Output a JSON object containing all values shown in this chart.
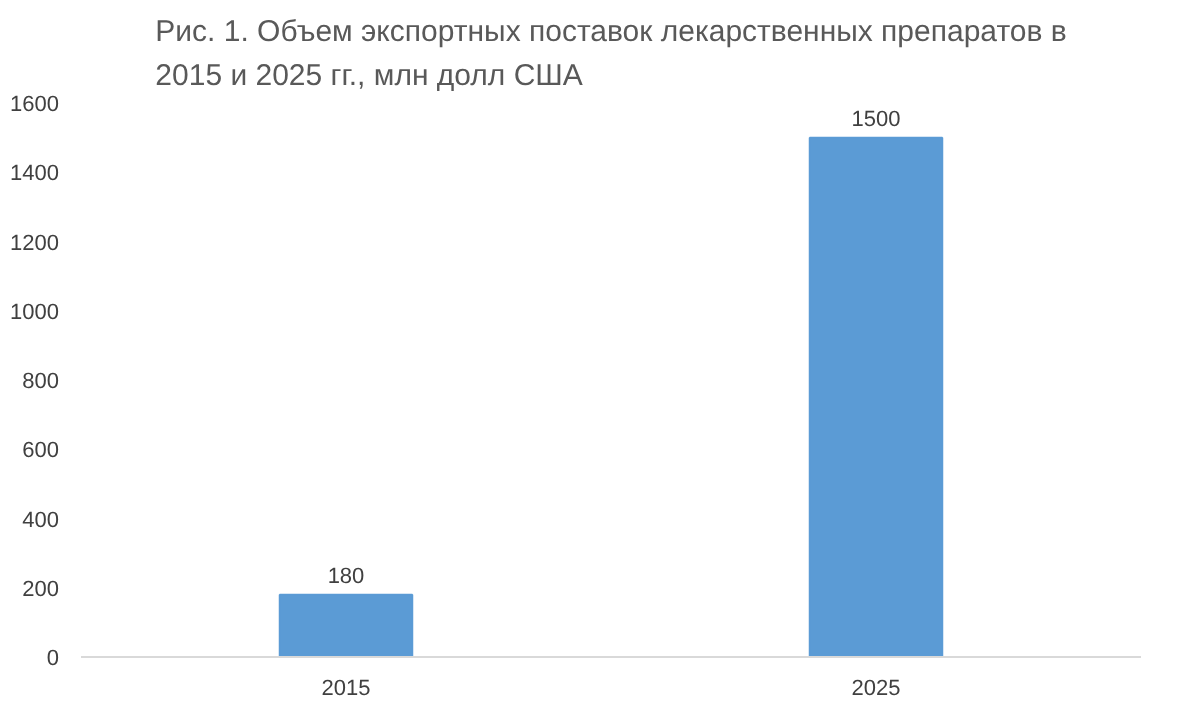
{
  "chart_data": {
    "type": "bar",
    "title": "Рис. 1. Объем экспортных поставок лекарственных препаратов в 2015 и 2025 гг., млн долл США",
    "categories": [
      "2015",
      "2025"
    ],
    "values": [
      180,
      1500
    ],
    "color": "#5b9bd5",
    "ylim": [
      0,
      1600
    ],
    "yticks": [
      0,
      200,
      400,
      600,
      800,
      1000,
      1200,
      1400,
      1600
    ],
    "grid": false,
    "data_labels": true
  }
}
